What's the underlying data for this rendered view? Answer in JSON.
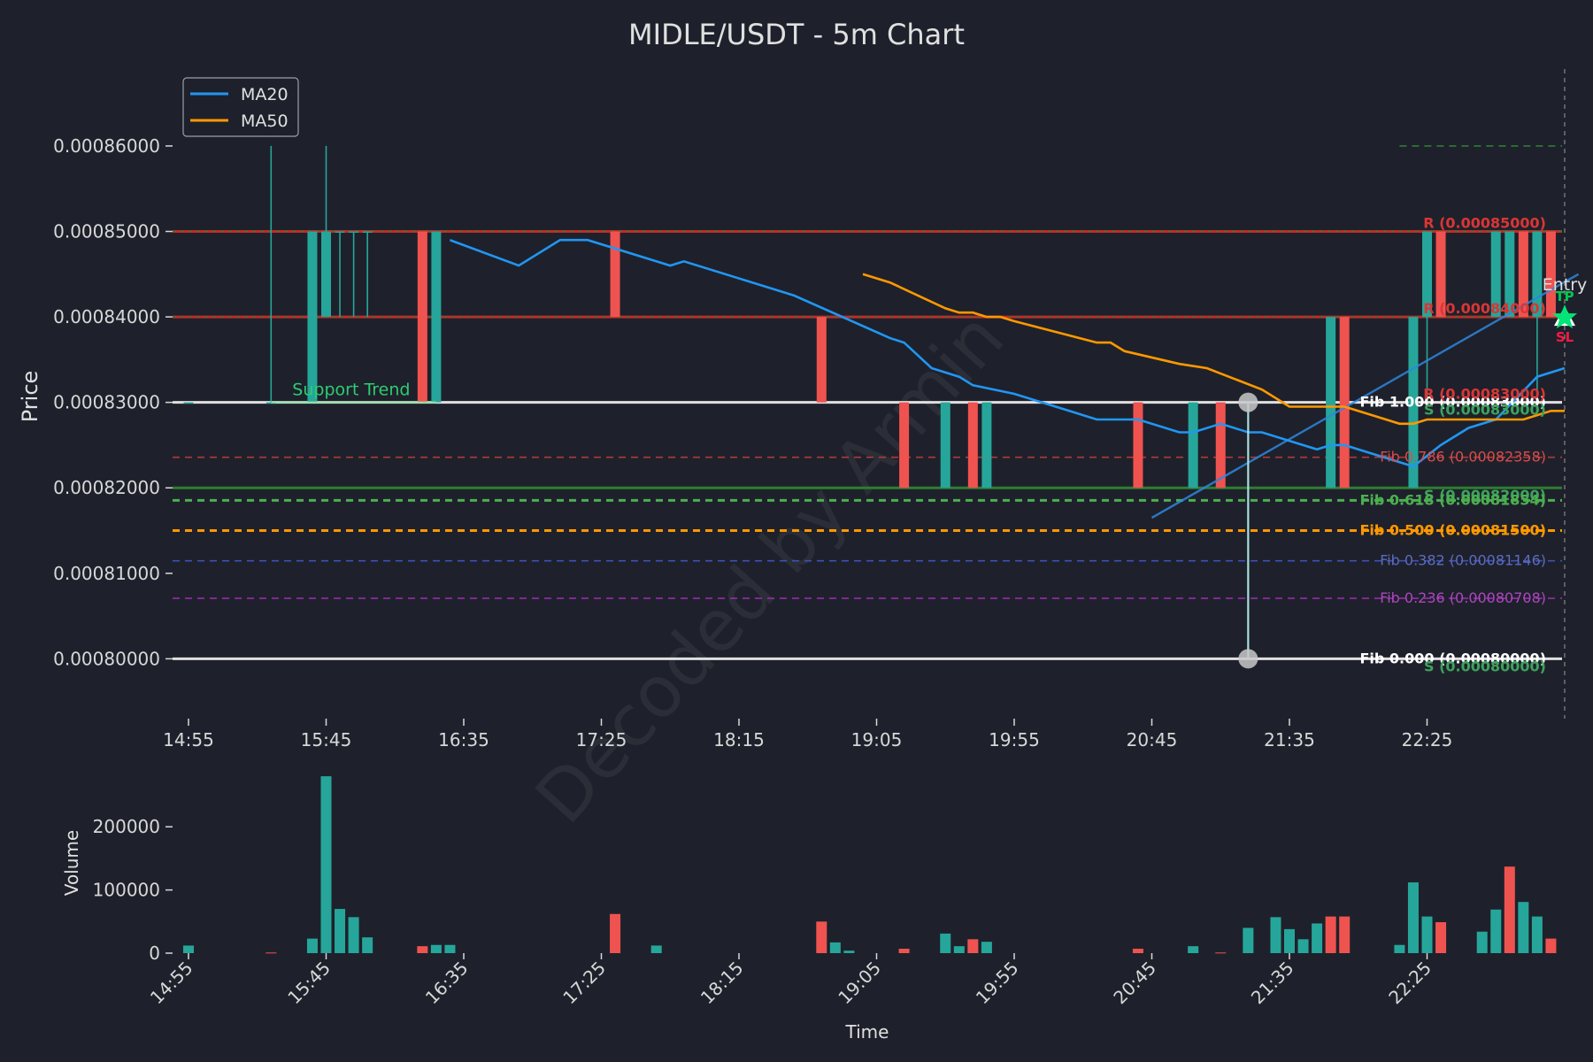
{
  "colors": {
    "background": "#1e212b",
    "up": "#26a69a",
    "down": "#ef5350",
    "ma20": "#2196f3",
    "ma50": "#ff9800",
    "resistance": "#c62828",
    "support": "#2e7d32",
    "text": "#e0e0e0"
  },
  "chart_data": [
    {
      "type": "candlestick",
      "title": "MIDLE/USDT - 5m Chart",
      "xlabel": "",
      "ylabel": "Price",
      "ylim": [
        0.000793,
        0.000869
      ],
      "y_ticks": [
        0.0008,
        0.00081,
        0.00082,
        0.00083,
        0.00084,
        0.00085,
        0.00086
      ],
      "y_tick_labels": [
        "0.00080000",
        "0.00081000",
        "0.00082000",
        "0.00083000",
        "0.00084000",
        "0.00085000",
        "0.00086000"
      ],
      "x_tick_labels": [
        "14:55",
        "15:45",
        "16:35",
        "17:25",
        "18:15",
        "19:05",
        "19:55",
        "20:45",
        "21:35",
        "22:25"
      ],
      "x_tick_index": [
        0,
        10,
        20,
        30,
        40,
        50,
        60,
        70,
        80,
        90
      ],
      "n": 101,
      "grid": false,
      "legend": {
        "position": "top-left",
        "entries": [
          {
            "name": "MA20",
            "color": "#2196f3"
          },
          {
            "name": "MA50",
            "color": "#ff9800"
          }
        ]
      },
      "candles": [
        {
          "i": 0,
          "o": 0.00083,
          "h": 0.00083,
          "l": 0.00083,
          "c": 0.00083
        },
        {
          "i": 6,
          "o": 0.00083,
          "h": 0.00086,
          "l": 0.00083,
          "c": 0.00083
        },
        {
          "i": 9,
          "o": 0.00083,
          "h": 0.00085,
          "l": 0.00083,
          "c": 0.00085
        },
        {
          "i": 10,
          "o": 0.00084,
          "h": 0.00086,
          "l": 0.00084,
          "c": 0.00085
        },
        {
          "i": 11,
          "o": 0.00085,
          "h": 0.00085,
          "l": 0.00084,
          "c": 0.00085
        },
        {
          "i": 12,
          "o": 0.00085,
          "h": 0.00085,
          "l": 0.00084,
          "c": 0.00085
        },
        {
          "i": 13,
          "o": 0.00085,
          "h": 0.00085,
          "l": 0.00084,
          "c": 0.00085
        },
        {
          "i": 17,
          "o": 0.00085,
          "h": 0.00085,
          "l": 0.00083,
          "c": 0.00083
        },
        {
          "i": 18,
          "o": 0.00083,
          "h": 0.00085,
          "l": 0.00083,
          "c": 0.00085
        },
        {
          "i": 31,
          "o": 0.00085,
          "h": 0.00085,
          "l": 0.00084,
          "c": 0.00084
        },
        {
          "i": 46,
          "o": 0.00084,
          "h": 0.00084,
          "l": 0.00083,
          "c": 0.00083
        },
        {
          "i": 52,
          "o": 0.00083,
          "h": 0.00083,
          "l": 0.00082,
          "c": 0.00082
        },
        {
          "i": 55,
          "o": 0.00082,
          "h": 0.00083,
          "l": 0.00082,
          "c": 0.00083
        },
        {
          "i": 57,
          "o": 0.00083,
          "h": 0.00083,
          "l": 0.00082,
          "c": 0.00082
        },
        {
          "i": 58,
          "o": 0.00082,
          "h": 0.00083,
          "l": 0.00082,
          "c": 0.00083
        },
        {
          "i": 69,
          "o": 0.00083,
          "h": 0.00083,
          "l": 0.00082,
          "c": 0.00082
        },
        {
          "i": 73,
          "o": 0.00082,
          "h": 0.00083,
          "l": 0.00082,
          "c": 0.00083
        },
        {
          "i": 75,
          "o": 0.00083,
          "h": 0.00083,
          "l": 0.00082,
          "c": 0.00082
        },
        {
          "i": 83,
          "o": 0.00082,
          "h": 0.00084,
          "l": 0.00082,
          "c": 0.00084
        },
        {
          "i": 84,
          "o": 0.00084,
          "h": 0.00084,
          "l": 0.00082,
          "c": 0.00082
        },
        {
          "i": 89,
          "o": 0.00082,
          "h": 0.00084,
          "l": 0.00082,
          "c": 0.00084
        },
        {
          "i": 90,
          "o": 0.00084,
          "h": 0.00085,
          "l": 0.00083,
          "c": 0.00085
        },
        {
          "i": 91,
          "o": 0.00085,
          "h": 0.00085,
          "l": 0.00084,
          "c": 0.00084
        },
        {
          "i": 95,
          "o": 0.00084,
          "h": 0.00085,
          "l": 0.00084,
          "c": 0.00085
        },
        {
          "i": 96,
          "o": 0.00084,
          "h": 0.00085,
          "l": 0.00084,
          "c": 0.00085
        },
        {
          "i": 97,
          "o": 0.00085,
          "h": 0.00085,
          "l": 0.00084,
          "c": 0.00084
        },
        {
          "i": 98,
          "o": 0.00084,
          "h": 0.00085,
          "l": 0.00083,
          "c": 0.00085
        },
        {
          "i": 99,
          "o": 0.00085,
          "h": 0.00085,
          "l": 0.00084,
          "c": 0.00084
        }
      ],
      "ma20": [
        [
          19,
          0.000849
        ],
        [
          24,
          0.000846
        ],
        [
          27,
          0.000849
        ],
        [
          29,
          0.000849
        ],
        [
          35,
          0.000846
        ],
        [
          36,
          0.0008465
        ],
        [
          44,
          0.0008425
        ],
        [
          51,
          0.0008375
        ],
        [
          52,
          0.000837
        ],
        [
          54,
          0.000834
        ],
        [
          56,
          0.000833
        ],
        [
          57,
          0.000832
        ],
        [
          60,
          0.000831
        ],
        [
          64,
          0.000829
        ],
        [
          66,
          0.000828
        ],
        [
          69,
          0.000828
        ],
        [
          72,
          0.0008265
        ],
        [
          73,
          0.0008265
        ],
        [
          75,
          0.0008275
        ],
        [
          77,
          0.0008265
        ],
        [
          78,
          0.0008265
        ],
        [
          82,
          0.0008245
        ],
        [
          83,
          0.000825
        ],
        [
          84,
          0.000825
        ],
        [
          88,
          0.000823
        ],
        [
          89,
          0.0008225
        ],
        [
          91,
          0.000825
        ],
        [
          93,
          0.000827
        ],
        [
          95,
          0.000828
        ],
        [
          98,
          0.000833
        ],
        [
          100,
          0.000834
        ]
      ],
      "ma50": [
        [
          49,
          0.000845
        ],
        [
          51,
          0.000844
        ],
        [
          53,
          0.0008425
        ],
        [
          55,
          0.000841
        ],
        [
          56,
          0.0008405
        ],
        [
          57,
          0.0008405
        ],
        [
          58,
          0.00084
        ],
        [
          59,
          0.00084
        ],
        [
          60,
          0.0008395
        ],
        [
          66,
          0.000837
        ],
        [
          67,
          0.000837
        ],
        [
          68,
          0.000836
        ],
        [
          72,
          0.0008345
        ],
        [
          74,
          0.000834
        ],
        [
          78,
          0.0008315
        ],
        [
          80,
          0.0008295
        ],
        [
          84,
          0.0008295
        ],
        [
          86,
          0.0008285
        ],
        [
          88,
          0.0008275
        ],
        [
          89,
          0.0008275
        ],
        [
          90,
          0.000828
        ],
        [
          93,
          0.000828
        ],
        [
          94,
          0.000828
        ],
        [
          95,
          0.000828
        ],
        [
          97,
          0.000828
        ],
        [
          99,
          0.000829
        ],
        [
          100,
          0.000829
        ]
      ],
      "trend_lines": [
        {
          "from": [
            6,
            0.00083
          ],
          "to": [
            18,
            0.00083
          ],
          "color": "#8de0a6",
          "label": "Support Trend"
        },
        {
          "from": [
            70,
            0.0008165
          ],
          "to": [
            101,
            0.000845
          ],
          "color": "#2e86de",
          "label": ""
        }
      ],
      "horizontal_levels": [
        {
          "price": 0.00086,
          "style": "dashed",
          "color": "#2e7d32",
          "label": "",
          "from": 88
        },
        {
          "price": 0.00085,
          "style": "solid",
          "color": "#c62828",
          "label": "R (0.00085000)",
          "label_color": "#d93636"
        },
        {
          "price": 0.00084,
          "style": "solid",
          "color": "#c62828",
          "label": "R (0.00084000)",
          "label_color": "#d93636"
        },
        {
          "price": 0.00083,
          "style": "solid",
          "color": "#e0e0e0",
          "label": "Fib 1.000 (0.00083000)",
          "label_color": "#ffffff"
        },
        {
          "price": 0.00083,
          "style": "none",
          "color": "#c62828",
          "label": "R (0.00083000)",
          "label_color": "#d93636"
        },
        {
          "price": 0.00083,
          "style": "none",
          "color": "#2e7d32",
          "label": "S (0.00083000)",
          "label_color": "#3da35d"
        },
        {
          "price": 0.00082358,
          "style": "dashed",
          "color": "#b03a3a",
          "label": "Fib 0.786 (0.00082358)",
          "label_color": "#d94c4c"
        },
        {
          "price": 0.00082,
          "style": "solid",
          "color": "#2e7d32",
          "label": "S (0.00082000)",
          "label_color": "#3da35d"
        },
        {
          "price": 0.00081854,
          "style": "dashed",
          "color": "#4caf50",
          "label": "Fib 0.618 (0.00081854)",
          "label_color": "#4caf50"
        },
        {
          "price": 0.000815,
          "style": "dashed",
          "color": "#ff9800",
          "label": "Fib 0.500 (0.00081500)",
          "label_color": "#ff9800"
        },
        {
          "price": 0.00081146,
          "style": "dashed",
          "color": "#3f51b5",
          "label": "Fib 0.382 (0.00081146)",
          "label_color": "#5c6bc0"
        },
        {
          "price": 0.00080708,
          "style": "dashed",
          "color": "#9c27b0",
          "label": "Fib 0.236 (0.00080708)",
          "label_color": "#ab47bc"
        },
        {
          "price": 0.0008,
          "style": "solid",
          "color": "#e0e0e0",
          "label": "Fib 0.000 (0.00080000)",
          "label_color": "#ffffff"
        },
        {
          "price": 0.0008,
          "style": "none",
          "color": "#2e7d32",
          "label": "S (0.00080000)",
          "label_color": "#3da35d"
        }
      ],
      "fib_anchor": {
        "index": 77,
        "high": 0.00083,
        "low": 0.0008
      },
      "entry": {
        "index": 100,
        "price": 0.00084,
        "label": "Entry",
        "tp_label": "TP",
        "sl_label": "SL"
      },
      "watermark": "Decoded by Armin"
    },
    {
      "type": "bar",
      "xlabel": "Time",
      "ylabel": "Volume",
      "ylim": [
        0,
        290000
      ],
      "y_ticks": [
        0,
        100000,
        200000
      ],
      "y_tick_labels": [
        "0",
        "100000",
        "200000"
      ],
      "x_tick_labels": [
        "14:55",
        "15:45",
        "16:35",
        "17:25",
        "18:15",
        "19:05",
        "19:55",
        "20:45",
        "21:35",
        "22:25"
      ],
      "x_tick_index": [
        0,
        10,
        20,
        30,
        40,
        50,
        60,
        70,
        80,
        90
      ],
      "volumes": [
        {
          "i": 0,
          "v": 12000,
          "up": true
        },
        {
          "i": 6,
          "v": 1000,
          "up": false
        },
        {
          "i": 9,
          "v": 23000,
          "up": true
        },
        {
          "i": 10,
          "v": 280000,
          "up": true
        },
        {
          "i": 11,
          "v": 70000,
          "up": true
        },
        {
          "i": 12,
          "v": 57000,
          "up": true
        },
        {
          "i": 13,
          "v": 25000,
          "up": true
        },
        {
          "i": 17,
          "v": 11000,
          "up": false
        },
        {
          "i": 18,
          "v": 13000,
          "up": true
        },
        {
          "i": 19,
          "v": 13000,
          "up": true
        },
        {
          "i": 31,
          "v": 62000,
          "up": false
        },
        {
          "i": 34,
          "v": 12000,
          "up": true
        },
        {
          "i": 46,
          "v": 50000,
          "up": false
        },
        {
          "i": 47,
          "v": 17000,
          "up": true
        },
        {
          "i": 48,
          "v": 4000,
          "up": true
        },
        {
          "i": 52,
          "v": 7000,
          "up": false
        },
        {
          "i": 55,
          "v": 31000,
          "up": true
        },
        {
          "i": 56,
          "v": 11000,
          "up": true
        },
        {
          "i": 57,
          "v": 22000,
          "up": false
        },
        {
          "i": 58,
          "v": 18000,
          "up": true
        },
        {
          "i": 69,
          "v": 7000,
          "up": false
        },
        {
          "i": 73,
          "v": 11000,
          "up": true
        },
        {
          "i": 75,
          "v": 1000,
          "up": false
        },
        {
          "i": 77,
          "v": 40000,
          "up": true
        },
        {
          "i": 79,
          "v": 57000,
          "up": true
        },
        {
          "i": 80,
          "v": 38000,
          "up": true
        },
        {
          "i": 81,
          "v": 22000,
          "up": true
        },
        {
          "i": 82,
          "v": 47000,
          "up": true
        },
        {
          "i": 83,
          "v": 58000,
          "up": false
        },
        {
          "i": 84,
          "v": 58000,
          "up": false
        },
        {
          "i": 88,
          "v": 13000,
          "up": true
        },
        {
          "i": 89,
          "v": 112000,
          "up": true
        },
        {
          "i": 90,
          "v": 58000,
          "up": true
        },
        {
          "i": 91,
          "v": 49000,
          "up": false
        },
        {
          "i": 94,
          "v": 34000,
          "up": true
        },
        {
          "i": 95,
          "v": 69000,
          "up": true
        },
        {
          "i": 96,
          "v": 137000,
          "up": false
        },
        {
          "i": 97,
          "v": 81000,
          "up": true
        },
        {
          "i": 98,
          "v": 58000,
          "up": true
        },
        {
          "i": 99,
          "v": 23000,
          "up": false
        }
      ]
    }
  ]
}
